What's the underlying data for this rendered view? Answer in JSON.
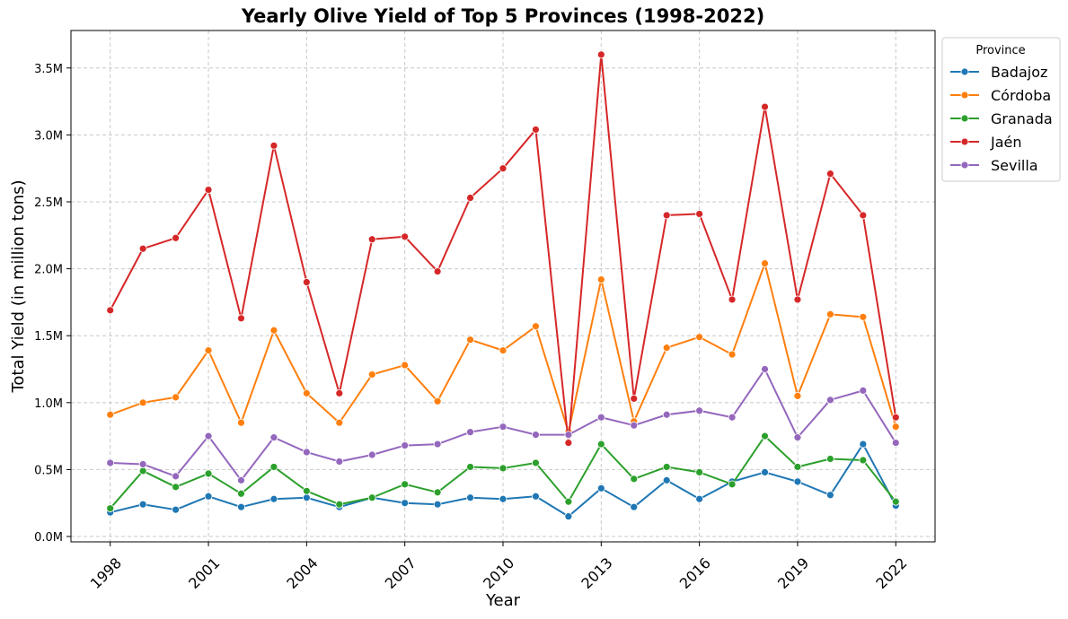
{
  "chart_data": {
    "type": "line",
    "title": "Yearly Olive Yield of Top 5 Provinces (1998-2022)",
    "xlabel": "Year",
    "ylabel": "Total Yield (in million tons)",
    "xlim": [
      1996.8,
      2023.2
    ],
    "ylim": [
      -0.04,
      3.78
    ],
    "grid": true,
    "legend_placement": "outside top-right",
    "legend_title": "Province",
    "x_ticks": [
      1998,
      2001,
      2004,
      2007,
      2010,
      2013,
      2016,
      2019,
      2022
    ],
    "x_tick_labels": [
      "1998",
      "2001",
      "2004",
      "2007",
      "2010",
      "2013",
      "2016",
      "2019",
      "2022"
    ],
    "y_ticks": [
      0,
      0.5,
      1.0,
      1.5,
      2.0,
      2.5,
      3.0,
      3.5
    ],
    "y_tick_labels": [
      "0.0M",
      "0.5M",
      "1.0M",
      "1.5M",
      "2.0M",
      "2.5M",
      "3.0M",
      "3.5M"
    ],
    "x": [
      1998,
      1999,
      2000,
      2001,
      2002,
      2003,
      2004,
      2005,
      2006,
      2007,
      2008,
      2009,
      2010,
      2011,
      2012,
      2013,
      2014,
      2015,
      2016,
      2017,
      2018,
      2019,
      2020,
      2021,
      2022
    ],
    "series": [
      {
        "name": "Badajoz",
        "color": "#1f77b4",
        "values": [
          0.18,
          0.24,
          0.2,
          0.3,
          0.22,
          0.28,
          0.29,
          0.22,
          0.29,
          0.25,
          0.24,
          0.29,
          0.28,
          0.3,
          0.15,
          0.36,
          0.22,
          0.42,
          0.28,
          0.41,
          0.48,
          0.41,
          0.31,
          0.69,
          0.23
        ]
      },
      {
        "name": "Córdoba",
        "color": "#ff7f0e",
        "values": [
          0.91,
          1.0,
          1.04,
          1.39,
          0.85,
          1.54,
          1.07,
          0.85,
          1.21,
          1.28,
          1.01,
          1.47,
          1.39,
          1.57,
          0.78,
          1.92,
          0.86,
          1.41,
          1.49,
          1.36,
          2.04,
          1.05,
          1.66,
          1.64,
          0.82
        ]
      },
      {
        "name": "Granada",
        "color": "#2ca02c",
        "values": [
          0.21,
          0.49,
          0.37,
          0.47,
          0.32,
          0.52,
          0.34,
          0.24,
          0.29,
          0.39,
          0.33,
          0.52,
          0.51,
          0.55,
          0.26,
          0.69,
          0.43,
          0.52,
          0.48,
          0.39,
          0.75,
          0.52,
          0.58,
          0.57,
          0.26
        ]
      },
      {
        "name": "Jaén",
        "color": "#d62728",
        "values": [
          1.69,
          2.15,
          2.23,
          2.59,
          1.63,
          2.92,
          1.9,
          1.07,
          2.22,
          2.24,
          1.98,
          2.53,
          2.75,
          3.04,
          0.7,
          3.6,
          1.03,
          2.4,
          2.41,
          1.77,
          3.21,
          1.77,
          2.71,
          2.4,
          0.89
        ]
      },
      {
        "name": "Sevilla",
        "color": "#9467bd",
        "values": [
          0.55,
          0.54,
          0.45,
          0.75,
          0.42,
          0.74,
          0.63,
          0.56,
          0.61,
          0.68,
          0.69,
          0.78,
          0.82,
          0.76,
          0.76,
          0.89,
          0.83,
          0.91,
          0.94,
          0.89,
          1.25,
          0.74,
          1.02,
          1.09,
          0.7
        ]
      }
    ]
  }
}
